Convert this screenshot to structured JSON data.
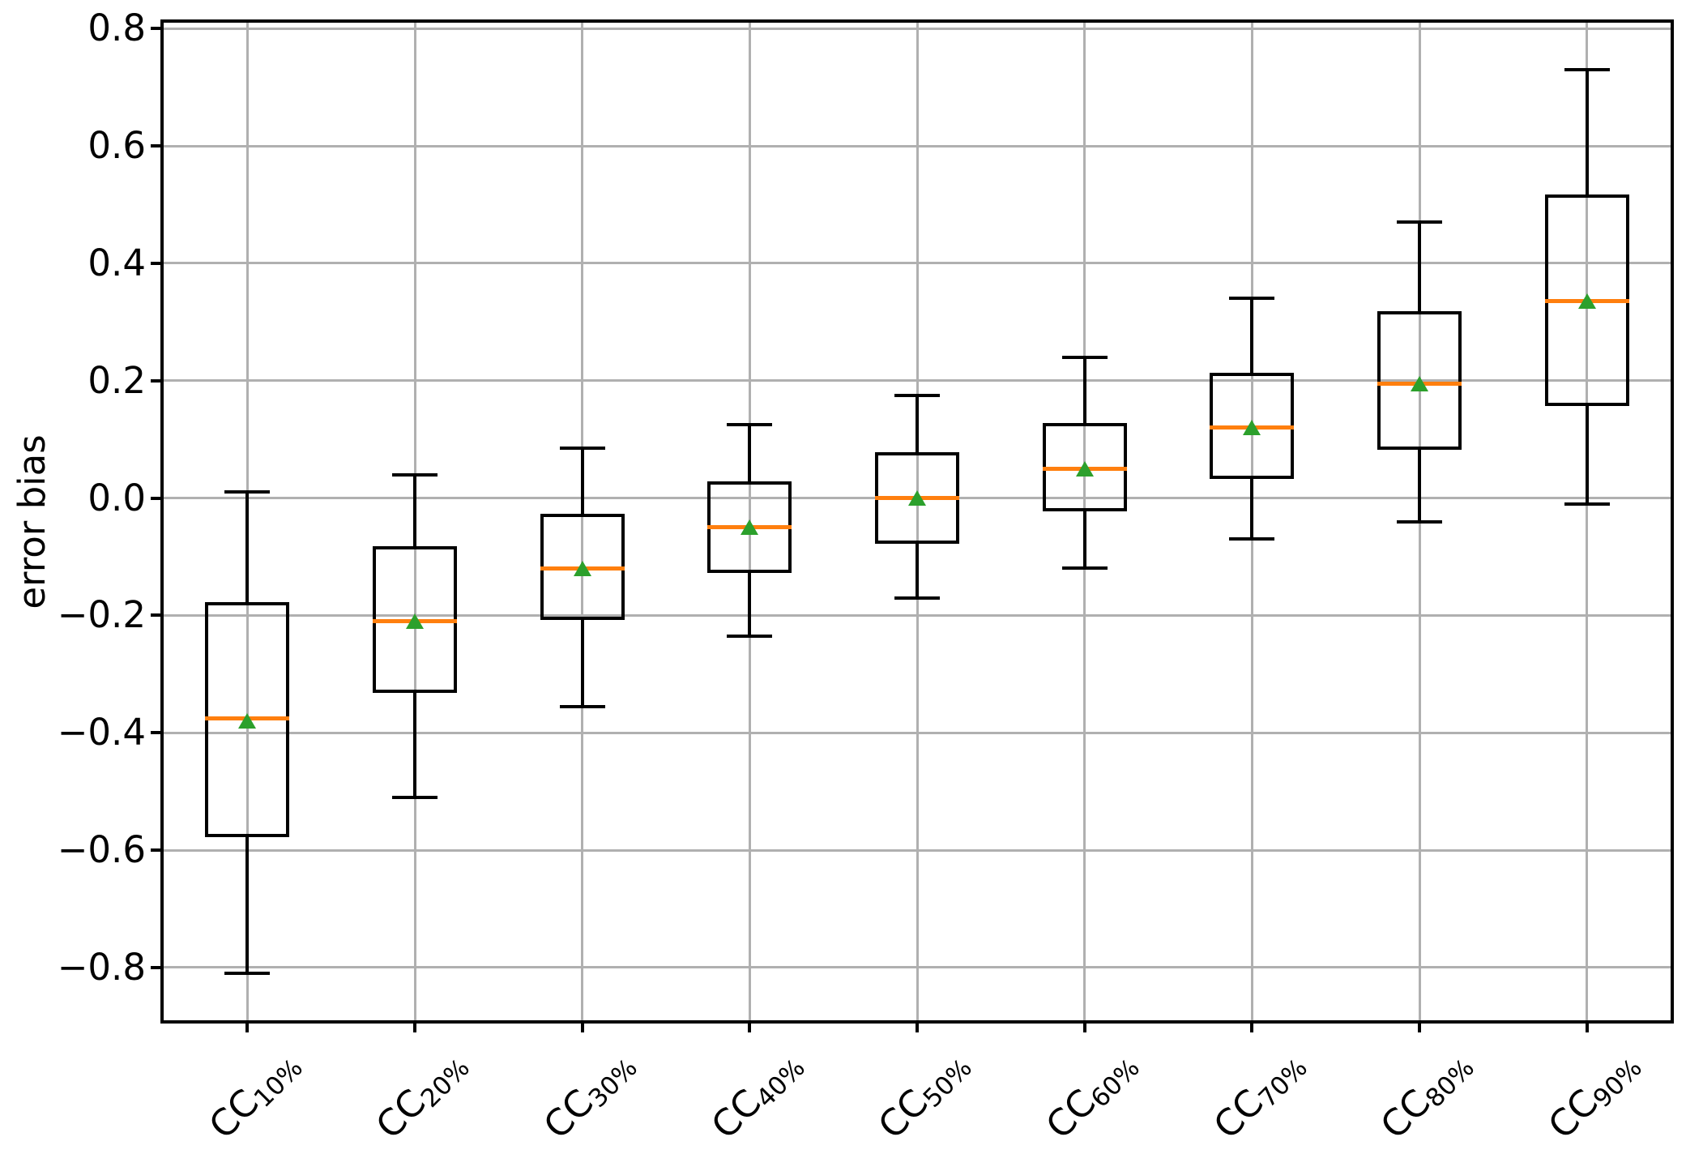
{
  "chart_data": {
    "type": "boxplot",
    "title": "",
    "xlabel": "",
    "ylabel": "error bias",
    "ylim": [
      -0.89,
      0.81
    ],
    "yticks": [
      0.8,
      0.6,
      0.4,
      0.2,
      0.0,
      -0.2,
      -0.4,
      -0.6,
      -0.8
    ],
    "grid": true,
    "legend": "none",
    "marker_styles": {
      "median_line_color": "#ff7f0e",
      "mean_marker": "triangle-up",
      "mean_marker_color": "#2ca02c",
      "box_line_color": "#000000",
      "grid_color": "#b0b0b0"
    },
    "categories": [
      {
        "prefix": "CC",
        "sub": "10%"
      },
      {
        "prefix": "CC",
        "sub": "20%"
      },
      {
        "prefix": "CC",
        "sub": "30%"
      },
      {
        "prefix": "CC",
        "sub": "40%"
      },
      {
        "prefix": "CC",
        "sub": "50%"
      },
      {
        "prefix": "CC",
        "sub": "60%"
      },
      {
        "prefix": "CC",
        "sub": "70%"
      },
      {
        "prefix": "CC",
        "sub": "80%"
      },
      {
        "prefix": "CC",
        "sub": "90%"
      }
    ],
    "series": [
      {
        "label": "CC 10%",
        "whislo": -0.81,
        "q1": -0.575,
        "med": -0.375,
        "mean": -0.38,
        "q3": -0.18,
        "whishi": 0.01
      },
      {
        "label": "CC 20%",
        "whislo": -0.51,
        "q1": -0.33,
        "med": -0.21,
        "mean": -0.21,
        "q3": -0.085,
        "whishi": 0.04
      },
      {
        "label": "CC 30%",
        "whislo": -0.355,
        "q1": -0.205,
        "med": -0.12,
        "mean": -0.12,
        "q3": -0.03,
        "whishi": 0.085
      },
      {
        "label": "CC 40%",
        "whislo": -0.235,
        "q1": -0.125,
        "med": -0.05,
        "mean": -0.05,
        "q3": 0.025,
        "whishi": 0.125
      },
      {
        "label": "CC 50%",
        "whislo": -0.17,
        "q1": -0.075,
        "med": 0.0,
        "mean": 0.0,
        "q3": 0.075,
        "whishi": 0.175
      },
      {
        "label": "CC 60%",
        "whislo": -0.12,
        "q1": -0.02,
        "med": 0.05,
        "mean": 0.05,
        "q3": 0.125,
        "whishi": 0.24
      },
      {
        "label": "CC 70%",
        "whislo": -0.07,
        "q1": 0.035,
        "med": 0.12,
        "mean": 0.12,
        "q3": 0.21,
        "whishi": 0.34
      },
      {
        "label": "CC 80%",
        "whislo": -0.04,
        "q1": 0.085,
        "med": 0.195,
        "mean": 0.195,
        "q3": 0.315,
        "whishi": 0.47
      },
      {
        "label": "CC 90%",
        "whislo": -0.01,
        "q1": 0.16,
        "med": 0.335,
        "mean": 0.335,
        "q3": 0.515,
        "whishi": 0.73
      }
    ]
  }
}
